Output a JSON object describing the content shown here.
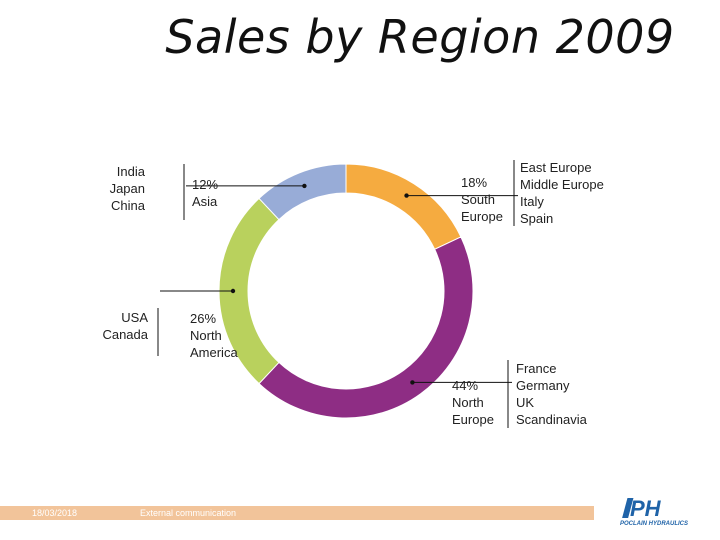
{
  "title": "Sales by Region 2009",
  "footer": {
    "date": "18/03/2018",
    "text": "External communication"
  },
  "logo": {
    "mark": "PH",
    "text": "POCLAIN HYDRAULICS"
  },
  "colors": {
    "south_europe": "#f5ab40",
    "north_europe": "#8e2d84",
    "north_america": "#b9d15d",
    "asia": "#98acd7",
    "leader": "#111111",
    "footer_bar": "#f2c49a",
    "logo": "#1f63a8"
  },
  "chart_data": {
    "type": "pie",
    "title": "Sales by Region 2009",
    "style": "donut",
    "slices": [
      {
        "percent_label": "18%",
        "value": 18,
        "region": [
          "South",
          "Europe"
        ],
        "countries": [
          "East Europe",
          "Middle Europe",
          "Italy",
          "Spain"
        ],
        "color": "#f5ab40"
      },
      {
        "percent_label": "44%",
        "value": 44,
        "region": [
          "North",
          "Europe"
        ],
        "countries": [
          "France",
          "Germany",
          "UK",
          "Scandinavia"
        ],
        "color": "#8e2d84"
      },
      {
        "percent_label": "26%",
        "value": 26,
        "region": [
          "North",
          "America"
        ],
        "countries": [
          "USA",
          "Canada"
        ],
        "color": "#b9d15d"
      },
      {
        "percent_label": "12%",
        "value": 12,
        "region": [
          "Asia"
        ],
        "countries": [
          "India",
          "Japan",
          "China"
        ],
        "color": "#98acd7"
      }
    ]
  }
}
